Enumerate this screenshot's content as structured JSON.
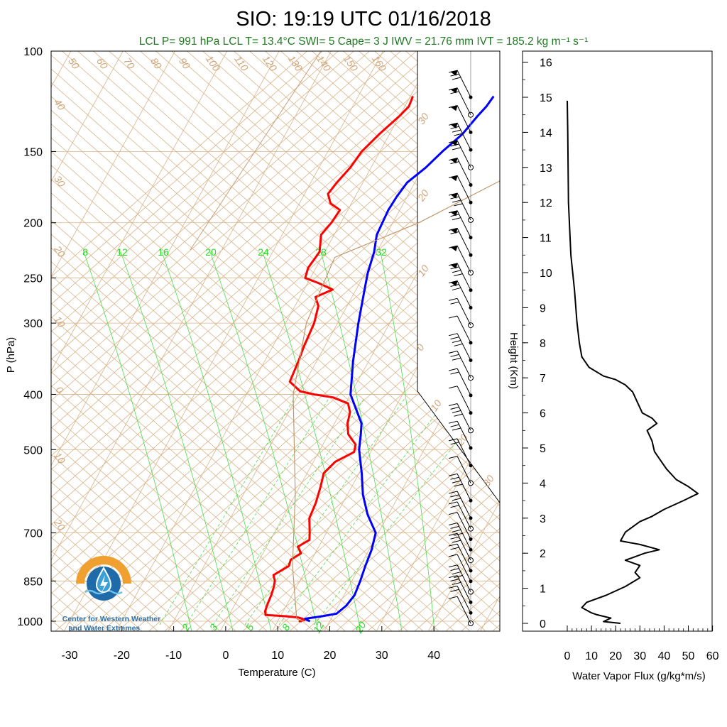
{
  "title": "SIO: 19:19 UTC 01/16/2018",
  "subtitle": "LCL P= 991 hPa  LCL T= 13.4°C  SWI= 5  Cape= 3 J  IWV = 21.76 mm  IVT = 185.2 kg m⁻¹ s⁻¹",
  "logo": {
    "line1": "Center for Western Weather",
    "line2": "and Water Extremes",
    "colors": {
      "sun": "#f0a030",
      "water": "#1f6aa8",
      "drop": "#3aa0d8"
    }
  },
  "colors": {
    "temperature": "#ff0000",
    "dewpoint": "#0000ff",
    "parcel": "#c0986a",
    "isotherm": "#d9b48a",
    "mixing_ratio": "#48e048",
    "flux": "#000000",
    "subtitle": "#1e7a1e"
  },
  "chart_data": [
    {
      "type": "line",
      "name": "skew-t",
      "xlabel": "Temperature (C)",
      "ylabel": "P (hPa)",
      "xlim": [
        -35,
        50
      ],
      "ylim": [
        1050,
        100
      ],
      "y_scale": "log",
      "x_ticks": [
        "-30",
        "-20",
        "-10",
        "0",
        "10",
        "20",
        "30",
        "40"
      ],
      "y_ticks": [
        "100",
        "150",
        "200",
        "250",
        "300",
        "400",
        "500",
        "700",
        "850",
        "1000"
      ],
      "mixing_ratio_labels": [
        "8",
        "12",
        "16",
        "20",
        "24",
        "28",
        "32"
      ],
      "mixing_ratio_labels_bottom": [
        "2",
        "3",
        "5",
        "8",
        "12",
        "20"
      ],
      "dry_adiabat_labels": [
        "50",
        "60",
        "70",
        "80",
        "90",
        "100",
        "110",
        "120",
        "130",
        "140",
        "150",
        "160"
      ],
      "wet_adiabat_labels": [
        "40",
        "30",
        "20",
        "10",
        "0",
        "10",
        "20"
      ],
      "right_adiabat_labels": [
        "30",
        "20",
        "10",
        "0",
        "10",
        "20",
        "30"
      ],
      "series": [
        {
          "name": "temperature",
          "points": [
            [
              1000,
              14.6
            ],
            [
              1000,
              14.2
            ],
            [
              995,
              15.0
            ],
            [
              990,
              14.5
            ],
            [
              985,
              13.5
            ],
            [
              980,
              11.0
            ],
            [
              975,
              7.0
            ],
            [
              960,
              6.5
            ],
            [
              930,
              6.2
            ],
            [
              900,
              6.0
            ],
            [
              870,
              5.6
            ],
            [
              850,
              5.2
            ],
            [
              830,
              4.3
            ],
            [
              800,
              6.3
            ],
            [
              780,
              6.0
            ],
            [
              760,
              7.3
            ],
            [
              740,
              6.0
            ],
            [
              720,
              7.5
            ],
            [
              700,
              6.8
            ],
            [
              660,
              5.2
            ],
            [
              620,
              4.8
            ],
            [
              580,
              4.0
            ],
            [
              550,
              3.2
            ],
            [
              525,
              4.2
            ],
            [
              505,
              6.8
            ],
            [
              490,
              6.3
            ],
            [
              470,
              3.8
            ],
            [
              450,
              2.5
            ],
            [
              430,
              1.8
            ],
            [
              415,
              0.5
            ],
            [
              405,
              -3.0
            ],
            [
              400,
              -7.0
            ],
            [
              395,
              -10.0
            ],
            [
              380,
              -13.0
            ],
            [
              350,
              -13.5
            ],
            [
              330,
              -14.0
            ],
            [
              300,
              -14.5
            ],
            [
              280,
              -15.5
            ],
            [
              270,
              -17.0
            ],
            [
              262,
              -14.5
            ],
            [
              255,
              -18.0
            ],
            [
              250,
              -21.0
            ],
            [
              240,
              -21.5
            ],
            [
              225,
              -21.0
            ],
            [
              210,
              -22.5
            ],
            [
              200,
              -21.8
            ],
            [
              190,
              -21.5
            ],
            [
              185,
              -24.0
            ],
            [
              178,
              -25.5
            ],
            [
              170,
              -25.0
            ],
            [
              160,
              -24.0
            ],
            [
              150,
              -23.5
            ],
            [
              140,
              -22.0
            ],
            [
              130,
              -20.0
            ],
            [
              125,
              -19.2
            ],
            [
              120,
              -19.5
            ]
          ]
        },
        {
          "name": "dewpoint",
          "points": [
            [
              1000,
              16.2
            ],
            [
              995,
              15.5
            ],
            [
              990,
              15.0
            ],
            [
              980,
              18.0
            ],
            [
              970,
              20.5
            ],
            [
              940,
              21.5
            ],
            [
              900,
              22.0
            ],
            [
              850,
              21.6
            ],
            [
              800,
              21.0
            ],
            [
              750,
              20.5
            ],
            [
              700,
              19.5
            ],
            [
              650,
              16.0
            ],
            [
              600,
              13.0
            ],
            [
              550,
              10.5
            ],
            [
              500,
              7.5
            ],
            [
              470,
              6.2
            ],
            [
              450,
              5.2
            ],
            [
              430,
              3.2
            ],
            [
              400,
              0.0
            ],
            [
              350,
              -3.0
            ],
            [
              300,
              -6.0
            ],
            [
              260,
              -8.5
            ],
            [
              245,
              -9.5
            ],
            [
              225,
              -10.5
            ],
            [
              210,
              -11.8
            ],
            [
              200,
              -12.0
            ],
            [
              190,
              -12.2
            ],
            [
              180,
              -12.0
            ],
            [
              170,
              -11.5
            ],
            [
              160,
              -9.5
            ],
            [
              150,
              -8.0
            ],
            [
              140,
              -6.0
            ],
            [
              130,
              -5.0
            ],
            [
              125,
              -4.3
            ],
            [
              120,
              -4.0
            ]
          ]
        },
        {
          "name": "parcel",
          "points": [
            [
              1000,
              15.0
            ],
            [
              991,
              13.4
            ],
            [
              800,
              7.0
            ],
            [
              600,
              0.0
            ],
            [
              400,
              -11.0
            ],
            [
              300,
              -16.0
            ],
            [
              230,
              -17.5
            ],
            [
              200,
              -5.0
            ],
            [
              150,
              14.0
            ],
            [
              110,
              33.0
            ]
          ]
        }
      ]
    },
    {
      "type": "line",
      "name": "water-vapor-flux",
      "xlabel": "Water Vapor Flux (g/kg*m/s)",
      "ylabel": "Height (Km)",
      "xlim": [
        0,
        60
      ],
      "ylim": [
        -0.3,
        16.4
      ],
      "x_ticks": [
        "0",
        "10",
        "20",
        "30",
        "40",
        "50",
        "60"
      ],
      "y_ticks": [
        "0",
        "1",
        "2",
        "3",
        "4",
        "5",
        "6",
        "7",
        "8",
        "9",
        "10",
        "11",
        "12",
        "13",
        "14",
        "15",
        "16"
      ],
      "points": [
        [
          22,
          0.0
        ],
        [
          15,
          0.05
        ],
        [
          18,
          0.15
        ],
        [
          12,
          0.25
        ],
        [
          10,
          0.3
        ],
        [
          6,
          0.45
        ],
        [
          8,
          0.6
        ],
        [
          16,
          0.8
        ],
        [
          24,
          1.05
        ],
        [
          30,
          1.3
        ],
        [
          28,
          1.45
        ],
        [
          30,
          1.65
        ],
        [
          24,
          1.8
        ],
        [
          32,
          2.0
        ],
        [
          38,
          2.1
        ],
        [
          30,
          2.25
        ],
        [
          22,
          2.35
        ],
        [
          24,
          2.6
        ],
        [
          30,
          2.9
        ],
        [
          35,
          3.05
        ],
        [
          40,
          3.25
        ],
        [
          48,
          3.5
        ],
        [
          54,
          3.7
        ],
        [
          50,
          3.9
        ],
        [
          45,
          4.1
        ],
        [
          41,
          4.4
        ],
        [
          39,
          4.6
        ],
        [
          36,
          4.9
        ],
        [
          35,
          5.2
        ],
        [
          33,
          5.5
        ],
        [
          37,
          5.7
        ],
        [
          35,
          5.85
        ],
        [
          31,
          6.0
        ],
        [
          29,
          6.3
        ],
        [
          27,
          6.6
        ],
        [
          24,
          6.8
        ],
        [
          20,
          6.95
        ],
        [
          15,
          7.05
        ],
        [
          9,
          7.3
        ],
        [
          6,
          7.6
        ],
        [
          5,
          8.0
        ],
        [
          4,
          8.6
        ],
        [
          3,
          9.5
        ],
        [
          1.5,
          10.5
        ],
        [
          0.5,
          12.0
        ],
        [
          0.2,
          14.0
        ],
        [
          0,
          14.9
        ]
      ]
    },
    {
      "type": "scatter",
      "name": "wind-barbs",
      "xlabel": "",
      "ylabel": "",
      "heights_km": [
        0.0,
        0.3,
        0.6,
        0.9,
        1.2,
        1.5,
        1.8,
        2.1,
        2.4,
        2.7,
        3.0,
        3.5,
        4.0,
        4.5,
        5.0,
        5.5,
        6.0,
        6.5,
        7.0,
        7.5,
        8.0,
        8.5,
        9.0,
        9.5,
        10.0,
        10.5,
        11.0,
        11.5,
        12.0,
        12.5,
        13.0,
        13.5,
        14.0,
        14.5,
        15.0
      ]
    }
  ]
}
